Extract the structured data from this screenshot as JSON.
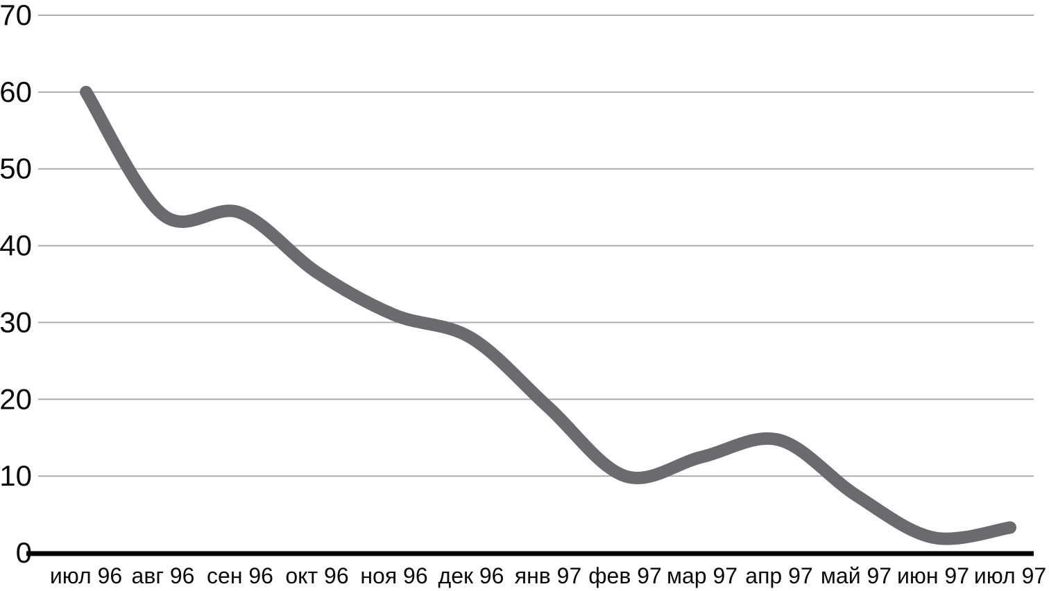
{
  "chart_data": {
    "type": "line",
    "smooth": true,
    "title": "",
    "xlabel": "",
    "ylabel": "",
    "categories": [
      "июл 96",
      "авг 96",
      "сен 96",
      "окт 96",
      "ноя 96",
      "дек 96",
      "янв 97",
      "фев 97",
      "мар 97",
      "апр 97",
      "май 97",
      "июн 97",
      "июл 97"
    ],
    "values": [
      60,
      44,
      44.3,
      36.5,
      31,
      28,
      19,
      10,
      12.5,
      14.7,
      7.5,
      2,
      3.3
    ],
    "ylim": [
      0,
      70
    ],
    "y_ticks": [
      0,
      10,
      20,
      30,
      40,
      50,
      60,
      70
    ],
    "grid": true,
    "legend": false,
    "colors": {
      "line": "#6b6b6f",
      "gridline": "#ababad",
      "axis": "#000000",
      "text": "#0a0a0a",
      "background": "#ffffff"
    }
  }
}
